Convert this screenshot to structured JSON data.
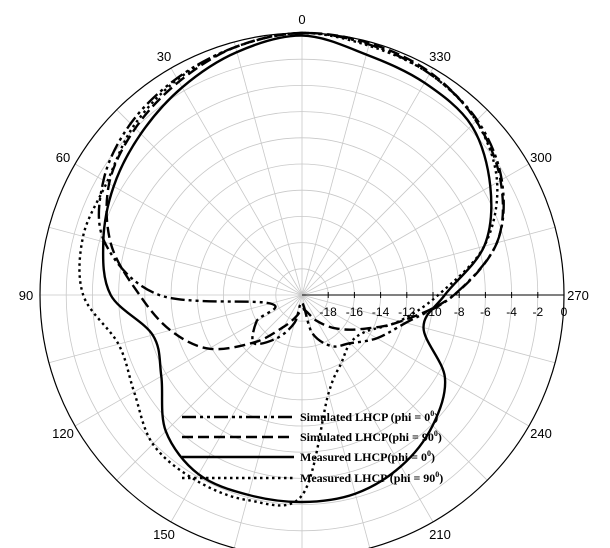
{
  "chart_data": {
    "type": "polar",
    "title": "",
    "radial_axis": {
      "min": -20,
      "max": 0,
      "ticks": [
        -18,
        -16,
        -14,
        -12,
        -10,
        -8,
        -6,
        -4,
        -2,
        0
      ],
      "tick_labels": [
        "-18",
        "-16",
        "-14",
        "-12",
        "-10",
        "-8",
        "-6",
        "-4",
        "-2",
        "0"
      ],
      "label_direction_deg": 270
    },
    "angular_axis": {
      "ticks": [
        0,
        30,
        60,
        90,
        120,
        150,
        180,
        210,
        240,
        270,
        300,
        330
      ],
      "tick_labels": [
        "0",
        "30",
        "60",
        "90",
        "120",
        "150",
        "",
        "210",
        "240",
        "270",
        "300",
        "330"
      ],
      "spoke_step_deg": 15,
      "zero_at": "top",
      "direction": "counterclockwise"
    },
    "grid": true,
    "legend_position": "bottom-center",
    "theta_deg": [
      0,
      15,
      30,
      45,
      60,
      75,
      90,
      105,
      120,
      135,
      150,
      165,
      180,
      195,
      210,
      225,
      240,
      255,
      270,
      285,
      300,
      315,
      330,
      345
    ],
    "series": [
      {
        "name": "Simulated LHCP (phi = 0",
        "name_sup": "0",
        "name_end": ")",
        "dash": "14,4,3,4,3,4",
        "values": [
          0,
          -0.4,
          -0.9,
          -1.5,
          -2.5,
          -4.4,
          -9.1,
          -17.5,
          -16,
          -14.8,
          -16.2,
          -17.8,
          -19.4,
          -17,
          -15.5,
          -14.8,
          -13.4,
          -11.8,
          -8.4,
          -4.6,
          -2.4,
          -1.1,
          -0.5,
          -0.2
        ]
      },
      {
        "name": "Simulated LHCP(phi = 90",
        "name_sup": "0",
        "name_end": ")",
        "dash": "11,5",
        "values": [
          0,
          -0.4,
          -1.2,
          -2,
          -3,
          -4.9,
          -7.6,
          -9.6,
          -11.8,
          -14.9,
          -17.2,
          -18.3,
          -18.9,
          -18.7,
          -17.7,
          -16.4,
          -14.8,
          -12.2,
          -8.4,
          -4.6,
          -2.5,
          -1.2,
          -0.4,
          -0.1
        ]
      },
      {
        "name": "Measured LHCP(phi = 0",
        "name_sup": "0",
        "name_end": ")",
        "dash": "",
        "values": [
          -0.2,
          -0.8,
          -1.7,
          -2.6,
          -3.4,
          -4.3,
          -5.4,
          -8.2,
          -7.6,
          -5.3,
          -4.2,
          -4.2,
          -4.2,
          -4.3,
          -4.9,
          -5.9,
          -7.4,
          -10.4,
          -9.1,
          -5.6,
          -3.4,
          -1.7,
          -1.3,
          -1
        ]
      },
      {
        "name": "Measured LHCP (phi = 90",
        "name_sup": "0",
        "name_end": ")",
        "dash": "2.5,3.5",
        "values": [
          0,
          -0.4,
          -1,
          -1.8,
          -2.8,
          -2.7,
          -3.3,
          -5.5,
          -5.2,
          -3.9,
          -3.7,
          -3.8,
          -4.7,
          -12.2,
          -14,
          -14.8,
          -14.4,
          -12.3,
          -9.6,
          -5.6,
          -2.8,
          -1.2,
          -0.5,
          -0.3
        ]
      }
    ]
  }
}
